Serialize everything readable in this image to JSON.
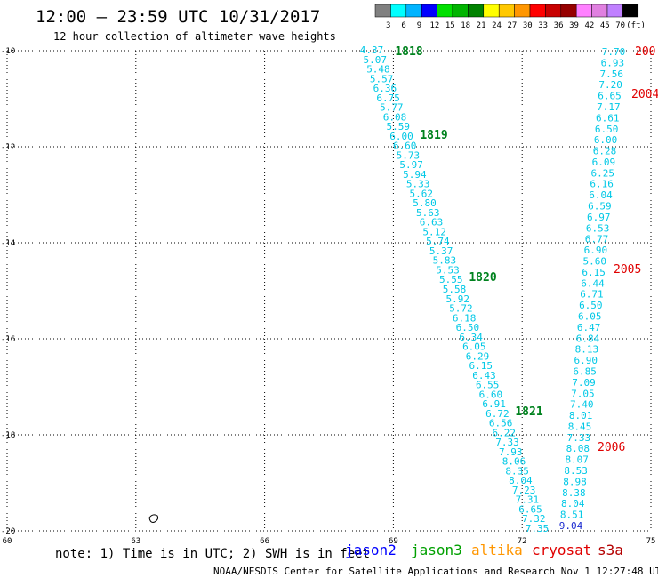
{
  "header": {
    "title": "12:00 – 23:59 UTC 10/31/2017",
    "subtitle": "12 hour collection of altimeter wave heights"
  },
  "color_scale": {
    "labels": [
      "3",
      "6",
      "9",
      "12",
      "15",
      "18",
      "21",
      "24",
      "27",
      "30",
      "33",
      "36",
      "39",
      "42",
      "45",
      "70",
      "(ft)"
    ],
    "colors": [
      "#808080",
      "#00ffff",
      "#00b4ff",
      "#0000ff",
      "#00e000",
      "#00b400",
      "#008200",
      "#ffff00",
      "#ffc800",
      "#ff9600",
      "#ff0000",
      "#c80000",
      "#960000",
      "#ff80ff",
      "#e080e0",
      "#c080ff",
      "#000000"
    ]
  },
  "axes": {
    "x_ticks": [
      "60",
      "63",
      "66",
      "69",
      "72",
      "75"
    ],
    "y_ticks": [
      "-10",
      "-12",
      "-14",
      "-16",
      "-18",
      "-20"
    ]
  },
  "tracks": {
    "left_descending": {
      "color": "#00c8e6",
      "values": [
        "4.37",
        "5.07",
        "5.48",
        "5.57",
        "6.36",
        "6.75",
        "5.77",
        "6.08",
        "5.59",
        "6.00",
        "6.60",
        "5.73",
        "5.97",
        "5.94",
        "5.33",
        "5.62",
        "5.80",
        "5.63",
        "6.63",
        "5.12",
        "5.74",
        "5.37",
        "5.83",
        "5.53",
        "5.55",
        "5.58",
        "5.92",
        "5.72",
        "6.18",
        "6.50",
        "6.34",
        "6.05",
        "6.29",
        "6.15",
        "6.43",
        "6.55",
        "6.60",
        "6.91",
        "6.72",
        "6.56",
        "6.22",
        "7.33",
        "7.93",
        "8.06",
        "8.35",
        "8.04",
        "7.23",
        "7.31",
        "6.65",
        "7.32",
        "7.35"
      ],
      "times": [
        "1818",
        "1819",
        "1820",
        "1821"
      ]
    },
    "right_ascending": {
      "color": "#00c8e6",
      "values": [
        "7.70",
        "6.93",
        "7.56",
        "7.20",
        "6.65",
        "7.17",
        "6.61",
        "6.50",
        "6.00",
        "6.28",
        "6.09",
        "6.25",
        "6.16",
        "6.04",
        "6.59",
        "6.97",
        "6.53",
        "6.77",
        "6.90",
        "5.60",
        "6.15",
        "6.44",
        "6.71",
        "6.50",
        "6.05",
        "6.47",
        "6.84",
        "8.13",
        "6.90",
        "6.85",
        "7.09",
        "7.05",
        "7.40",
        "8.01",
        "8.45",
        "7.33",
        "8.08",
        "8.07",
        "8.53",
        "8.98",
        "8.38",
        "8.04",
        "8.51",
        "9.04"
      ],
      "times": [
        "200",
        "2004",
        "2005",
        "2006"
      ]
    }
  },
  "note": "note:  1) Time is in UTC;  2) SWH is in feet",
  "legend": [
    {
      "name": "jason2",
      "color": "#0000ff"
    },
    {
      "name": "jason3",
      "color": "#00a000"
    },
    {
      "name": "altika",
      "color": "#ff9600"
    },
    {
      "name": "cryosat",
      "color": "#e00000"
    },
    {
      "name": "s3a",
      "color": "#b40000"
    }
  ],
  "footer": "NOAA/NESDIS Center for Satellite Applications and Research    Nov  1 12:27:48 UTC 2017"
}
